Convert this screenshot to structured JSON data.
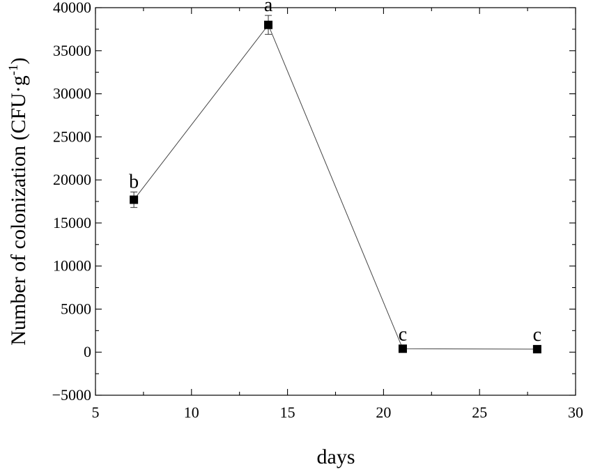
{
  "chart_data": {
    "type": "line",
    "xlabel": "days",
    "ylabel": "Number of colonization (CFU·g",
    "ylabel_sup": "-1",
    "ylabel_close": ")",
    "xlim": [
      5,
      30
    ],
    "ylim": [
      -5000,
      40000
    ],
    "x_ticks": [
      5,
      10,
      15,
      20,
      25,
      30
    ],
    "y_ticks": [
      -5000,
      0,
      5000,
      10000,
      15000,
      20000,
      25000,
      30000,
      35000,
      40000
    ],
    "y_tick_labels": [
      "−5000",
      "0",
      "5000",
      "10000",
      "15000",
      "20000",
      "25000",
      "30000",
      "35000",
      "40000"
    ],
    "grid": false,
    "series": [
      {
        "x": [
          7,
          14,
          21,
          28
        ],
        "values": [
          17700,
          38000,
          400,
          350
        ],
        "error": [
          900,
          1100,
          100,
          100
        ],
        "labels": [
          "b",
          "a",
          "c",
          "c"
        ]
      }
    ]
  }
}
